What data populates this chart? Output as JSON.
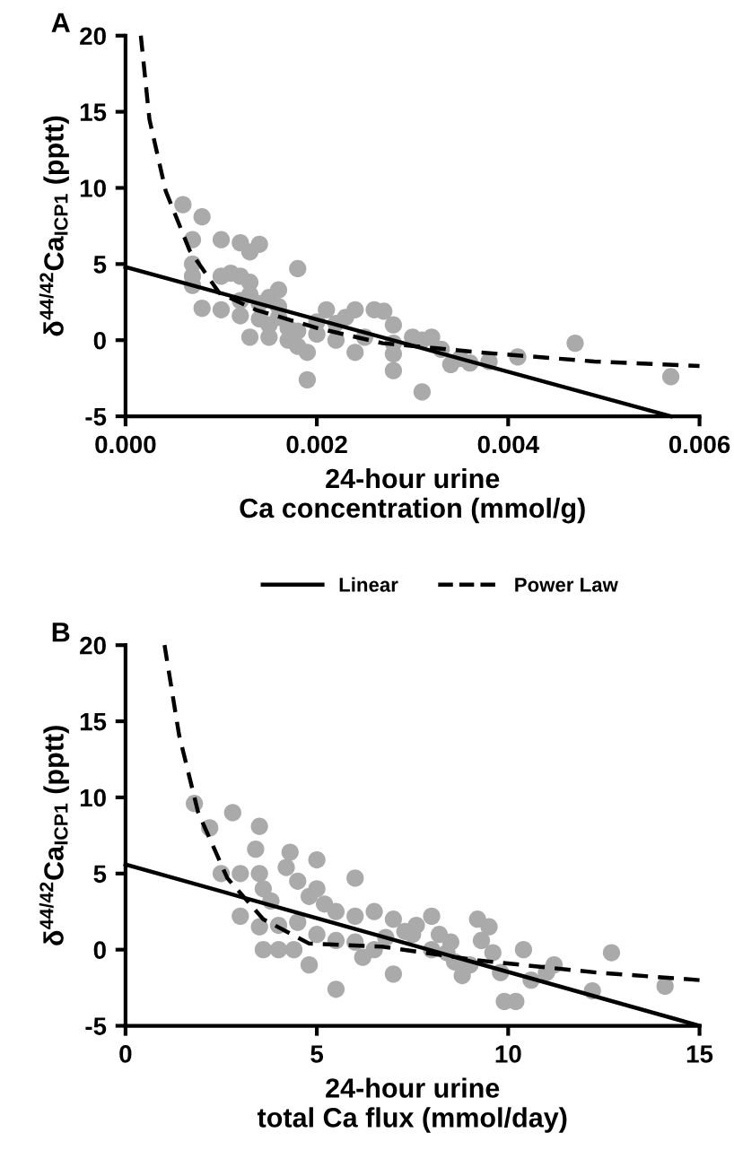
{
  "chart_data": [
    {
      "type": "scatter",
      "title": "A",
      "xlabel": "24-hour urine\nCa concentration (mmol/g)",
      "ylabel": "δ$^{44/42}$Ca$_{ICP1}$ (pptt)",
      "xlim": [
        0,
        0.006
      ],
      "ylim": [
        -5,
        20
      ],
      "xticks": [
        {
          "value": 0,
          "label": "0.000"
        },
        {
          "value": 0.002,
          "label": "0.002"
        },
        {
          "value": 0.004,
          "label": "0.004"
        },
        {
          "value": 0.006,
          "label": "0.006"
        }
      ],
      "yticks": [
        -5,
        0,
        5,
        10,
        15,
        20
      ],
      "grid": false,
      "legend": "bottom",
      "series": [
        {
          "color": "#aaaaaa",
          "marker": "circle",
          "x": [
            0.0006,
            0.0008,
            0.0007,
            0.001,
            0.0012,
            0.0014,
            0.0013,
            0.0007,
            0.0007,
            0.0007,
            0.001,
            0.0011,
            0.0012,
            0.0013,
            0.0018,
            0.0008,
            0.001,
            0.0012,
            0.0013,
            0.0014,
            0.0015,
            0.0016,
            0.0012,
            0.0014,
            0.0015,
            0.0016,
            0.0017,
            0.0013,
            0.0015,
            0.0017,
            0.0018,
            0.0019,
            0.0018,
            0.002,
            0.0021,
            0.0023,
            0.0024,
            0.0022,
            0.0024,
            0.0019,
            0.0025,
            0.0026,
            0.0027,
            0.0028,
            0.0028,
            0.0028,
            0.0028,
            0.003,
            0.0031,
            0.0032,
            0.0031,
            0.0033,
            0.0034,
            0.0035,
            0.0036,
            0.0038,
            0.0041,
            0.0047,
            0.0057,
            0.0016,
            0.002,
            0.0022
          ],
          "values": [
            8.9,
            8.1,
            6.6,
            6.6,
            6.4,
            6.3,
            5.8,
            5.0,
            4.2,
            3.6,
            4.2,
            4.4,
            4.2,
            3.8,
            4.7,
            2.1,
            2.0,
            2.6,
            3.0,
            2.4,
            2.8,
            2.2,
            1.6,
            1.4,
            1.0,
            1.5,
            0.8,
            0.2,
            0.2,
            0.0,
            -0.4,
            -0.8,
            0.6,
            0.4,
            2.0,
            1.5,
            2.0,
            0.0,
            -0.8,
            -2.6,
            0.2,
            2.0,
            1.9,
            1.0,
            -0.2,
            -0.9,
            -2.0,
            0.2,
            0.0,
            0.2,
            -3.4,
            -0.6,
            -1.6,
            -1.2,
            -1.5,
            -1.4,
            -1.1,
            -0.2,
            -2.4,
            3.3,
            1.2,
            1.1
          ]
        },
        {
          "type": "line",
          "name": "Linear",
          "color": "#000000",
          "line_style": "solid",
          "x": [
            0,
            0.0057
          ],
          "values": [
            4.8,
            -5
          ]
        },
        {
          "type": "line",
          "name": "Power Law",
          "color": "#000000",
          "line_style": "dashed",
          "x": [
            0.00016,
            0.00025,
            0.00042,
            0.00067,
            0.00098,
            0.00136,
            0.002,
            0.00269,
            0.0037,
            0.0049,
            0.006
          ],
          "values": [
            20,
            14.5,
            9.8,
            5.9,
            3.1,
            2.0,
            0.8,
            -0.2,
            -0.8,
            -1.4,
            -1.7
          ]
        }
      ]
    },
    {
      "type": "scatter",
      "title": "B",
      "xlabel": "24-hour urine\ntotal Ca flux (mmol/day)",
      "ylabel": "δ$^{44/42}$Ca$_{ICP1}$ (pptt)",
      "xlim": [
        0,
        15
      ],
      "ylim": [
        -5,
        20
      ],
      "xticks": [
        0,
        5,
        10,
        15
      ],
      "yticks": [
        -5,
        0,
        5,
        10,
        15,
        20
      ],
      "grid": false,
      "series": [
        {
          "color": "#aaaaaa",
          "marker": "circle",
          "x": [
            1.8,
            2.2,
            2.8,
            3.5,
            3.4,
            4.3,
            4.2,
            5.0,
            6.0,
            2.5,
            3.0,
            3.5,
            3.6,
            3.8,
            4.5,
            4.8,
            5.0,
            5.2,
            5.5,
            6.0,
            6.5,
            7.0,
            7.5,
            3.0,
            3.5,
            4.0,
            4.5,
            5.0,
            5.5,
            6.0,
            6.5,
            3.6,
            4.0,
            4.4,
            4.8,
            5.5,
            6.2,
            7.0,
            7.3,
            7.6,
            8.0,
            8.2,
            8.4,
            8.6,
            8.8,
            9.0,
            9.2,
            9.3,
            9.5,
            9.6,
            9.8,
            9.9,
            10.2,
            10.4,
            10.6,
            11.0,
            11.2,
            12.2,
            12.7,
            14.1,
            8.0,
            8.5,
            6.8
          ],
          "values": [
            9.6,
            8.0,
            9.0,
            8.1,
            6.6,
            6.4,
            5.4,
            5.9,
            4.7,
            5.0,
            5.0,
            5.0,
            4.0,
            3.2,
            4.5,
            3.5,
            4.0,
            3.0,
            2.5,
            2.2,
            2.5,
            2.0,
            1.0,
            2.2,
            1.5,
            1.6,
            1.8,
            1.0,
            0.6,
            0.5,
            0.0,
            0.0,
            0.0,
            0.0,
            -1.0,
            -2.6,
            -0.5,
            -1.6,
            1.2,
            1.6,
            2.2,
            1.0,
            -0.2,
            -0.8,
            -1.7,
            -1.0,
            2.0,
            0.6,
            1.5,
            -0.2,
            -1.5,
            -3.4,
            -3.4,
            0.0,
            -2.0,
            -1.5,
            -1.0,
            -2.7,
            -0.2,
            -2.4,
            0.0,
            0.5,
            0.8
          ]
        },
        {
          "type": "line",
          "color": "#000000",
          "line_style": "solid",
          "x": [
            0,
            15
          ],
          "values": [
            5.6,
            -5
          ]
        },
        {
          "type": "line",
          "color": "#000000",
          "line_style": "dashed",
          "x": [
            1.02,
            1.4,
            1.9,
            2.66,
            3.6,
            4.8,
            6.7,
            9.2,
            12.3,
            15
          ],
          "values": [
            20,
            14.1,
            9.0,
            4.7,
            2.0,
            0.4,
            0.2,
            -0.7,
            -1.5,
            -2.0
          ]
        }
      ]
    }
  ]
}
